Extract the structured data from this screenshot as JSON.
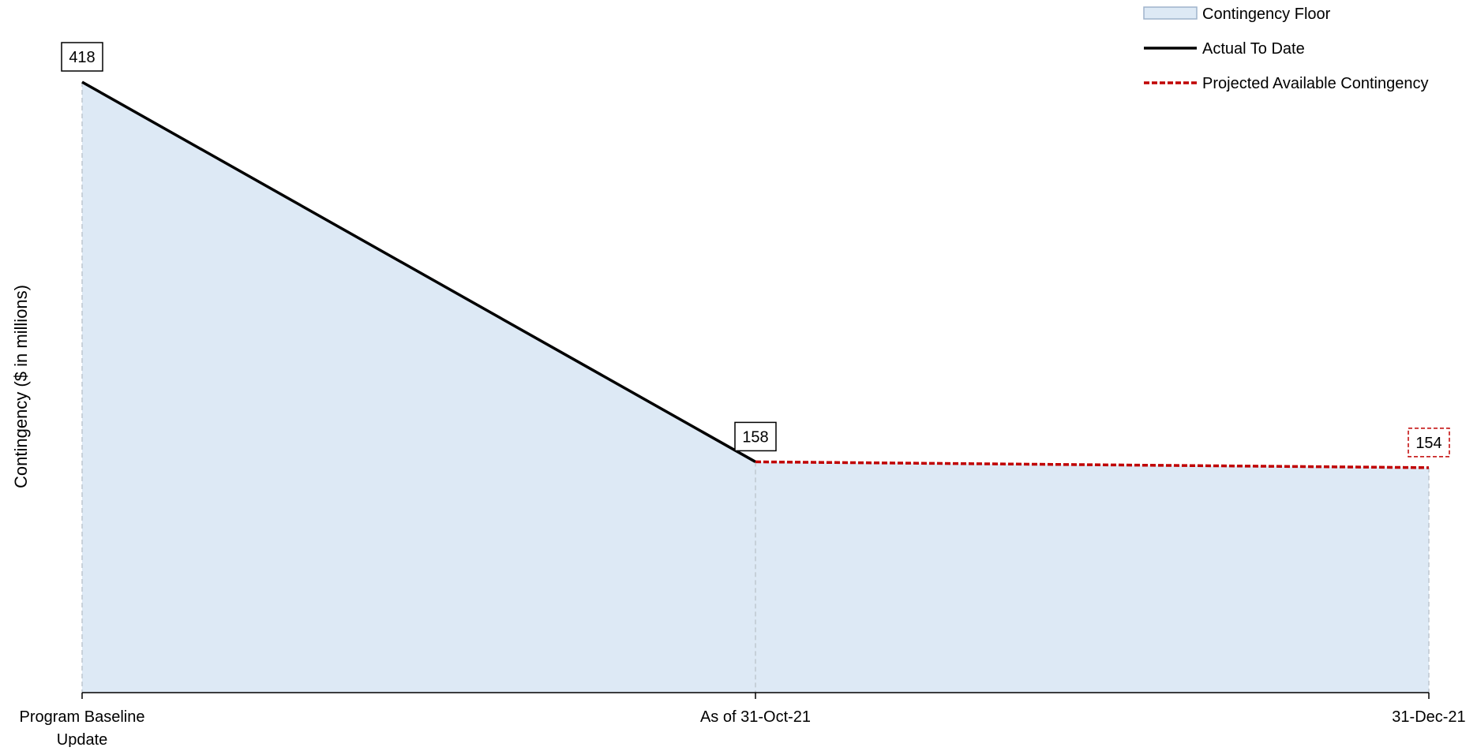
{
  "chart_data": {
    "type": "area",
    "categories": [
      "Program Baseline Update",
      "As of 31-Oct-21",
      "31-Dec-21"
    ],
    "category_lines": [
      [
        "Program Baseline",
        "Update"
      ],
      [
        "As of 31-Oct-21"
      ],
      [
        "31-Dec-21"
      ]
    ],
    "ylabel": "Contingency ($ in millions)",
    "ylim": [
      0,
      418
    ],
    "grid": false,
    "legend_position": "top-right",
    "series": [
      {
        "name": "Contingency Floor",
        "kind": "area",
        "values": [
          418,
          158,
          154
        ],
        "color": "#DDE9F5",
        "border_color": "#9FB4CC"
      },
      {
        "name": "Actual To Date",
        "kind": "line",
        "values": [
          418,
          158,
          null
        ],
        "color": "#000000",
        "dash": "solid"
      },
      {
        "name": "Projected Available Contingency",
        "kind": "line",
        "values": [
          null,
          158,
          154
        ],
        "color": "#C00000",
        "dash": "dashed"
      }
    ],
    "data_labels": [
      {
        "category_index": 0,
        "value": 418,
        "text": "418",
        "box_style": "solid",
        "color": "#000000"
      },
      {
        "category_index": 1,
        "value": 158,
        "text": "158",
        "box_style": "solid",
        "color": "#000000"
      },
      {
        "category_index": 2,
        "value": 154,
        "text": "154",
        "box_style": "dashed",
        "color": "#C00000"
      }
    ]
  }
}
